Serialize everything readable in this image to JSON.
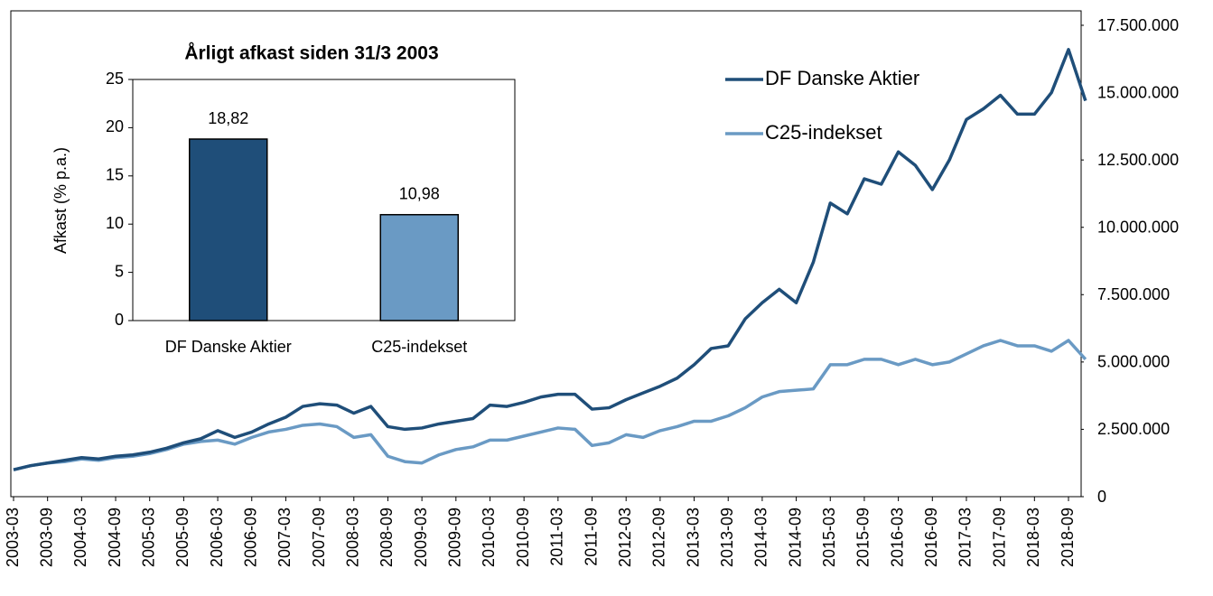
{
  "chart_data": [
    {
      "type": "line",
      "categories": [
        "2003-03",
        null,
        "2003-09",
        null,
        "2004-03",
        null,
        "2004-09",
        null,
        "2005-03",
        null,
        "2005-09",
        null,
        "2006-03",
        null,
        "2006-09",
        null,
        "2007-03",
        null,
        "2007-09",
        null,
        "2008-03",
        null,
        "2008-09",
        null,
        "2009-03",
        null,
        "2009-09",
        null,
        "2010-03",
        null,
        "2010-09",
        null,
        "2011-03",
        null,
        "2011-09",
        null,
        "2012-03",
        null,
        "2012-09",
        null,
        "2013-03",
        null,
        "2013-09",
        null,
        "2014-03",
        null,
        "2014-09",
        null,
        "2015-03",
        null,
        "2015-09",
        null,
        "2016-03",
        null,
        "2016-09",
        null,
        "2017-03",
        null,
        "2017-09",
        null,
        "2018-03",
        null,
        "2018-09",
        null
      ],
      "series": [
        {
          "name": "DF Danske Aktier",
          "color": "#1f4e79",
          "values": [
            1000000,
            1150000,
            1250000,
            1350000,
            1450000,
            1400000,
            1500000,
            1550000,
            1650000,
            1800000,
            2000000,
            2150000,
            2450000,
            2200000,
            2400000,
            2700000,
            2950000,
            3350000,
            3450000,
            3400000,
            3100000,
            3350000,
            2600000,
            2500000,
            2550000,
            2700000,
            2800000,
            2900000,
            3400000,
            3350000,
            3500000,
            3700000,
            3800000,
            3800000,
            3250000,
            3300000,
            3600000,
            3850000,
            4100000,
            4400000,
            4900000,
            5500000,
            5600000,
            6600000,
            7200000,
            7700000,
            7200000,
            8700000,
            10900000,
            10500000,
            11800000,
            11600000,
            12800000,
            12300000,
            11400000,
            12500000,
            14000000,
            14400000,
            14900000,
            14200000,
            14200000,
            15000000,
            16600000,
            14700000
          ]
        },
        {
          "name": "C25-indekset",
          "color": "#6a9ac4",
          "values": [
            1000000,
            1150000,
            1250000,
            1300000,
            1400000,
            1350000,
            1450000,
            1500000,
            1600000,
            1750000,
            1950000,
            2050000,
            2100000,
            1950000,
            2200000,
            2400000,
            2500000,
            2650000,
            2700000,
            2600000,
            2200000,
            2300000,
            1500000,
            1300000,
            1250000,
            1550000,
            1750000,
            1850000,
            2100000,
            2100000,
            2250000,
            2400000,
            2550000,
            2500000,
            1900000,
            2000000,
            2300000,
            2200000,
            2450000,
            2600000,
            2800000,
            2800000,
            3000000,
            3300000,
            3700000,
            3900000,
            3950000,
            4000000,
            4900000,
            4900000,
            5100000,
            5100000,
            4900000,
            5100000,
            4900000,
            5000000,
            5300000,
            5600000,
            5800000,
            5600000,
            5600000,
            5400000,
            5800000,
            5100000
          ]
        }
      ],
      "ylim": [
        0,
        17500000
      ],
      "yticks": [
        0,
        {
          "value": 2500000,
          "label": "2.500.000"
        },
        {
          "value": 5000000,
          "label": "5.000.000"
        },
        {
          "value": 7500000,
          "label": "7.500.000"
        },
        {
          "value": 10000000,
          "label": "10.000.000"
        },
        {
          "value": 12500000,
          "label": "12.500.000"
        },
        {
          "value": 15000000,
          "label": "15.000.000"
        },
        {
          "value": 17500000,
          "label": "17.500.000"
        }
      ],
      "legend": "upper right"
    },
    {
      "type": "bar",
      "title": "Årligt afkast siden 31/3 2003",
      "y_label": "Afkast (% p.a.)",
      "categories": [
        "DF Danske Aktier",
        "C25-indekset"
      ],
      "values": [
        18.82,
        10.98
      ],
      "value_labels": [
        "18,82",
        "10,98"
      ],
      "colors": [
        "#1f4e79",
        "#6a9ac4"
      ],
      "ylim": [
        0,
        25
      ],
      "yticks": [
        0,
        5,
        10,
        15,
        20,
        25
      ]
    }
  ]
}
